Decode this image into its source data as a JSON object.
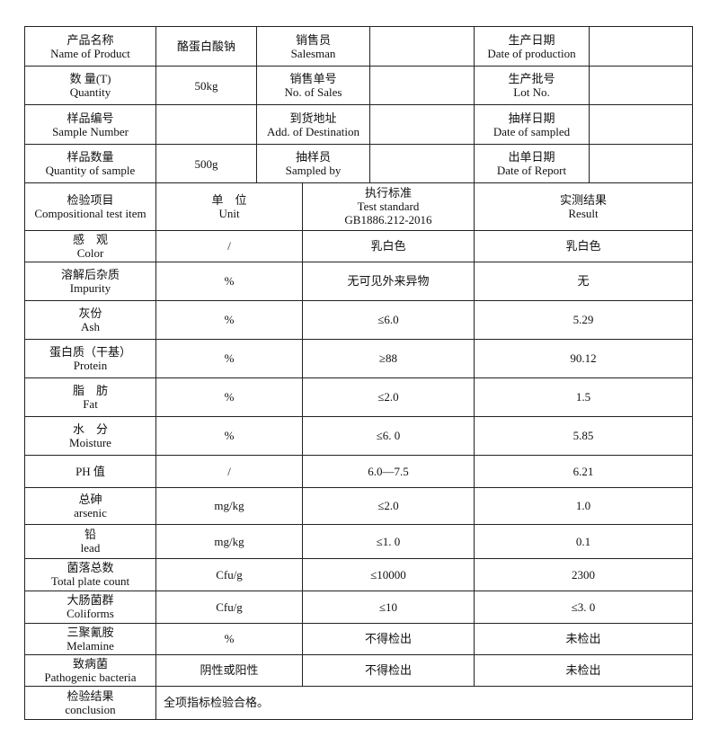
{
  "info_rows": [
    {
      "l1_zh": "产品名称",
      "l1_en": "Name of   Product",
      "v1": "酪蛋白酸钠",
      "l2_zh": "销售员",
      "l2_en": "Salesman",
      "v2": "",
      "l3_zh": "生产日期",
      "l3_en": "Date of production",
      "v3": ""
    },
    {
      "l1_zh": "数 量(T)",
      "l1_en": "Quantity",
      "v1": "50kg",
      "l2_zh": "销售单号",
      "l2_en": "No. of   Sales",
      "v2": "",
      "l3_zh": "生产批号",
      "l3_en": "Lot No.",
      "v3": ""
    },
    {
      "l1_zh": "样品编号",
      "l1_en": "Sample Number",
      "v1": "",
      "l2_zh": "到货地址",
      "l2_en": "Add. of Destination",
      "v2": "",
      "l3_zh": "抽样日期",
      "l3_en": "Date of sampled",
      "v3": ""
    },
    {
      "l1_zh": "样品数量",
      "l1_en": "Quantity of sample",
      "v1": "500g",
      "l2_zh": "抽样员",
      "l2_en": "Sampled by",
      "v2": "",
      "l3_zh": "出单日期",
      "l3_en": "Date of Report",
      "v3": ""
    }
  ],
  "test_header": {
    "item_zh": "检验项目",
    "item_en": "Compositional test item",
    "unit_zh": "单　位",
    "unit_en": "Unit",
    "std_zh": "执行标准",
    "std_en": "Test standard",
    "std_code": "GB1886.212-2016",
    "result_zh": "实测结果",
    "result_en": "Result"
  },
  "tests": [
    {
      "zh": "感　观",
      "en": "Color",
      "unit": "/",
      "standard": "乳白色",
      "result": "乳白色"
    },
    {
      "zh": "溶解后杂质",
      "en": "Impurity",
      "unit": "%",
      "standard": "无可见外来异物",
      "result": "无"
    },
    {
      "zh": "灰份",
      "en": "Ash",
      "unit": "%",
      "standard": "≤6.0",
      "result": "5.29"
    },
    {
      "zh": "蛋白质（干基）",
      "en": "Protein",
      "unit": "%",
      "standard": "≥88",
      "result": "90.12"
    },
    {
      "zh": "脂　肪",
      "en": "Fat",
      "unit": "%",
      "standard": "≤2.0",
      "result": "1.5"
    },
    {
      "zh": "水　分",
      "en": "Moisture",
      "unit": "%",
      "standard": "≤6. 0",
      "result": "5.85"
    },
    {
      "zh": "PH 值",
      "en": "",
      "unit": "/",
      "standard": "6.0—7.5",
      "result": "6.21"
    },
    {
      "zh": "总砷",
      "en": "arsenic",
      "unit": "mg/kg",
      "standard": "≤2.0",
      "result": "1.0"
    },
    {
      "zh": "铅",
      "en": "lead",
      "unit": "mg/kg",
      "standard": "≤1. 0",
      "result": "0.1"
    },
    {
      "zh": "菌落总数",
      "en": "Total plate count",
      "unit": "Cfu/g",
      "standard": "≤10000",
      "result": "2300"
    },
    {
      "zh": "大肠菌群",
      "en": "Coliforms",
      "unit": "Cfu/g",
      "standard": "≤10",
      "result": "≤3. 0"
    },
    {
      "zh": "三聚氰胺",
      "en": "Melamine",
      "unit": "%",
      "standard": "不得检出",
      "result": "未检出"
    },
    {
      "zh": "致病菌",
      "en": "Pathogenic bacteria",
      "unit": "阴性或阳性",
      "standard": "不得检出",
      "result": "未检出"
    }
  ],
  "conclusion": {
    "zh": "检验结果",
    "en": "conclusion",
    "text": "全项指标检验合格。"
  }
}
